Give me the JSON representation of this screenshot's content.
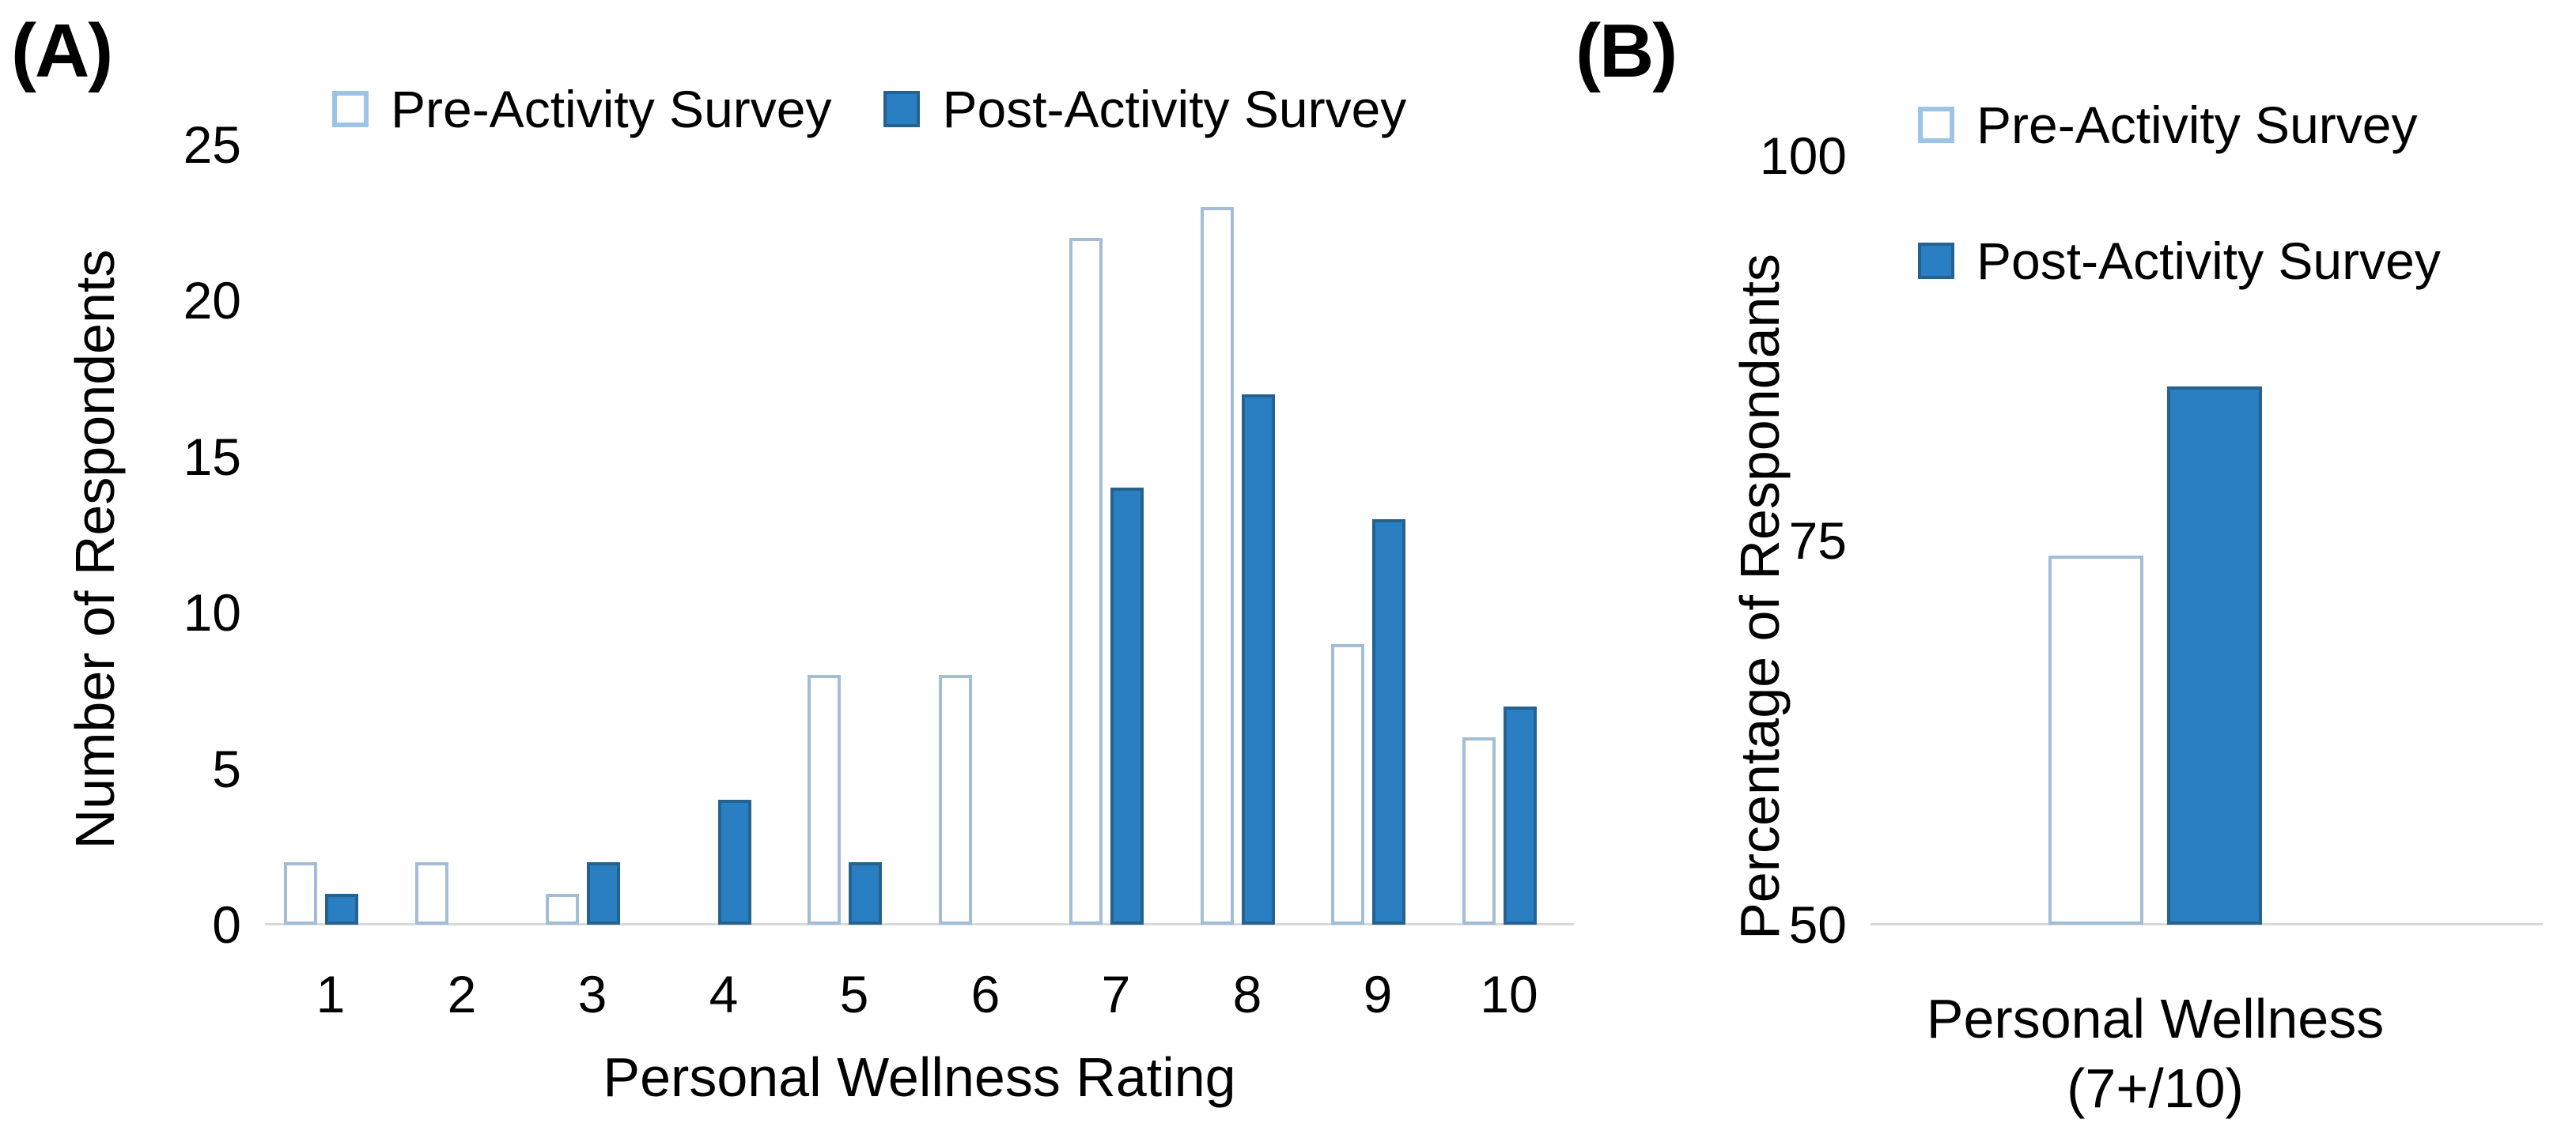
{
  "figure": {
    "description": "Two-panel bar chart of survey wellness ratings"
  },
  "colors": {
    "post_bar_fill": "#2a7fc2",
    "post_bar_border": "#26628f",
    "pre_bar_fill": "#ffffff",
    "pre_bar_border": "#a3bdd7",
    "legend_pre_swatch_border": "#9dc3e6",
    "axis_line": "#d9d9d9",
    "text": "#000000"
  },
  "chart_data": [
    {
      "id": "A",
      "panel_label": "(A)",
      "type": "bar",
      "categories": [
        "1",
        "2",
        "3",
        "4",
        "5",
        "6",
        "7",
        "8",
        "9",
        "10"
      ],
      "series": [
        {
          "name": "Pre-Activity Survey",
          "style": "outline",
          "values": [
            2,
            2,
            1,
            0,
            8,
            8,
            22,
            23,
            9,
            6
          ]
        },
        {
          "name": "Post-Activity Survey",
          "style": "solid",
          "values": [
            1,
            0,
            2,
            4,
            2,
            0,
            14,
            17,
            13,
            7
          ]
        }
      ],
      "xlabel": "Personal Wellness Rating",
      "ylabel": "Number of Respondents",
      "ylim": [
        0,
        25
      ],
      "yticks": [
        0,
        5,
        10,
        15,
        20,
        25
      ],
      "legend_position": "top-horizontal",
      "grid": false
    },
    {
      "id": "B",
      "panel_label": "(B)",
      "type": "bar",
      "categories": [
        "Personal Wellness (7+/10)"
      ],
      "series": [
        {
          "name": "Pre-Activity Survey",
          "style": "outline",
          "values": [
            74
          ]
        },
        {
          "name": "Post-Activity Survey",
          "style": "solid",
          "values": [
            85
          ]
        }
      ],
      "xlabel": "Personal Wellness (7+/10)",
      "xlabel_lines": [
        "Personal Wellness",
        "(7+/10)"
      ],
      "ylabel": "Percentage of Respondants",
      "ylim": [
        50,
        100
      ],
      "yticks": [
        50,
        75,
        100
      ],
      "legend_position": "top-right-vertical",
      "grid": false
    }
  ]
}
